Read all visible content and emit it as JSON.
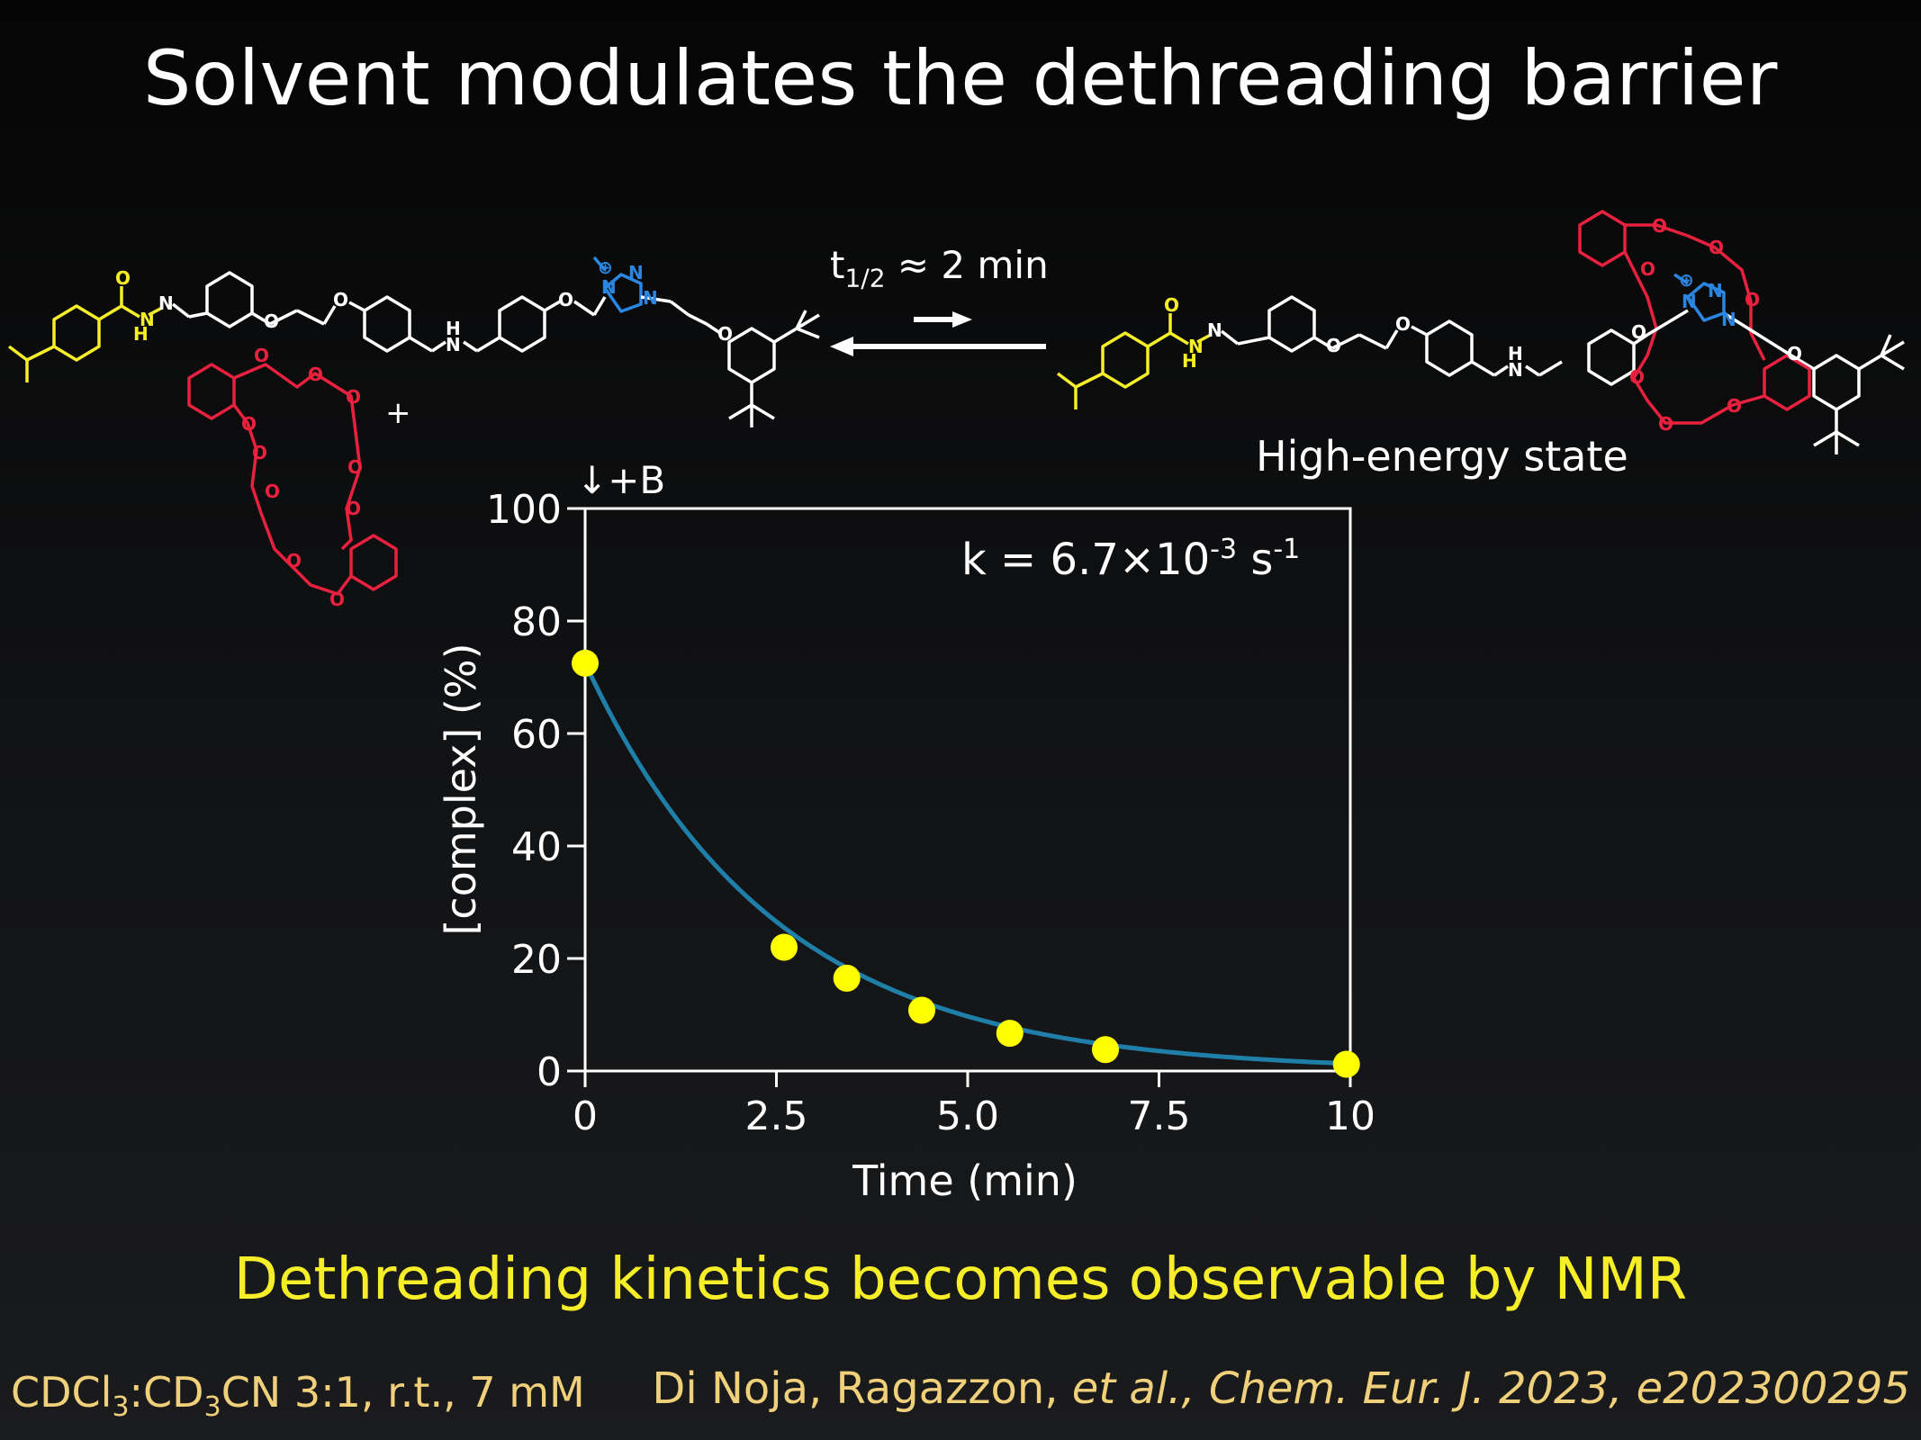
{
  "slide": {
    "title": "Solvent modulates the dethreading barrier",
    "state_label": "High-energy state",
    "t_half": {
      "prefix": "t",
      "sub": "1/2",
      "suffix": " ≈ 2 min"
    },
    "subtitle": "Dethreading kinetics becomes observable by NMR",
    "conditions": {
      "a": "CDCl",
      "b": "3",
      "c": ":CD",
      "d": "3",
      "e": "CN 3:1, r.t., 7 mM"
    },
    "citation": {
      "authors": "Di Noja, Ragazzon, ",
      "etal": "et al., Chem. Eur. J. 2023, e202300295"
    }
  },
  "molecule": {
    "atom_O": "O",
    "atom_N": "N",
    "atom_H": "H",
    "plus": "+",
    "charge": "⊕"
  },
  "colors": {
    "axle_yellow": "#f7ee2a",
    "ring_red": "#e8213f",
    "triazole_blue": "#2a86e0",
    "fit_line": "#1f7fa8",
    "points": "#ffff00",
    "subtitle": "#f7ee2a",
    "footer": "#f0d07a"
  },
  "chart_data": {
    "type": "scatter",
    "xlabel": "Time (min)",
    "ylabel": "[complex] (%)",
    "xlim": [
      0,
      10
    ],
    "ylim": [
      0,
      100
    ],
    "xticks": [
      "0",
      "2.5",
      "5.0",
      "7.5",
      "10"
    ],
    "xtick_values": [
      0,
      2.5,
      5.0,
      7.5,
      10
    ],
    "yticks": [
      "0",
      "20",
      "40",
      "60",
      "80",
      "100"
    ],
    "ytick_values": [
      0,
      20,
      40,
      60,
      80,
      100
    ],
    "annotation": "↓+B",
    "rate_label": {
      "base": "k = 6.7×10",
      "exp1": "-3",
      "mid": " s",
      "exp2": "-1"
    },
    "series": [
      {
        "points": [
          {
            "x": 0,
            "y": 72.5
          },
          {
            "x": 2.6,
            "y": 22
          },
          {
            "x": 3.42,
            "y": 16.5
          },
          {
            "x": 4.4,
            "y": 10.8
          },
          {
            "x": 5.55,
            "y": 6.7
          },
          {
            "x": 6.8,
            "y": 3.8
          },
          {
            "x": 9.95,
            "y": 1.2
          }
        ]
      }
    ],
    "fit": {
      "y0": 72.5,
      "k_per_min": 0.402
    }
  }
}
